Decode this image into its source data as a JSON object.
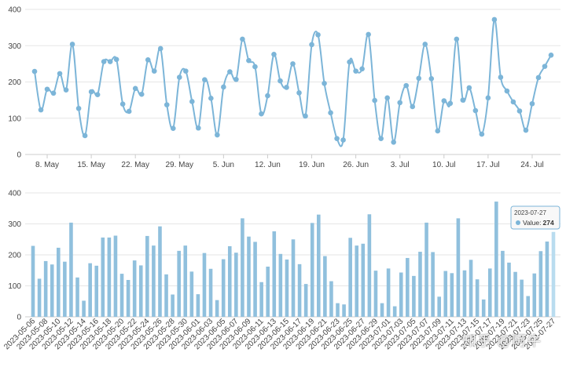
{
  "watermark": "知乎 @阿牛",
  "colors": {
    "line": "#7cb5d8",
    "bar": "#90c0dd",
    "highlight": "#b9dcef",
    "grid": "#e6e6e6"
  },
  "tooltip": {
    "date": "2023-07-27",
    "label": "Value:",
    "value": "274"
  },
  "chart_data": [
    {
      "type": "line",
      "ylim": [
        0,
        400
      ],
      "yticks": [
        0,
        100,
        200,
        300,
        400
      ],
      "grid": true,
      "xtick_labels": [
        "8. May",
        "15. May",
        "22. May",
        "29. May",
        "5. Jun",
        "12. Jun",
        "19. Jun",
        "26. Jun",
        "3. Jul",
        "10. Jul",
        "17. Jul",
        "24. Jul"
      ],
      "series": [
        {
          "x": [
            "2023-05-06",
            "2023-05-07",
            "2023-05-08",
            "2023-05-09",
            "2023-05-10",
            "2023-05-11",
            "2023-05-12",
            "2023-05-13",
            "2023-05-14",
            "2023-05-15",
            "2023-05-16",
            "2023-05-17",
            "2023-05-18",
            "2023-05-19",
            "2023-05-20",
            "2023-05-21",
            "2023-05-22",
            "2023-05-23",
            "2023-05-24",
            "2023-05-25",
            "2023-05-26",
            "2023-05-27",
            "2023-05-28",
            "2023-05-29",
            "2023-05-30",
            "2023-05-31",
            "2023-06-01",
            "2023-06-02",
            "2023-06-03",
            "2023-06-04",
            "2023-06-05",
            "2023-06-06",
            "2023-06-07",
            "2023-06-08",
            "2023-06-09",
            "2023-06-10",
            "2023-06-11",
            "2023-06-12",
            "2023-06-13",
            "2023-06-14",
            "2023-06-15",
            "2023-06-16",
            "2023-06-17",
            "2023-06-18",
            "2023-06-19",
            "2023-06-20",
            "2023-06-21",
            "2023-06-22",
            "2023-06-23",
            "2023-06-24",
            "2023-06-25",
            "2023-06-26",
            "2023-06-27",
            "2023-06-28",
            "2023-06-29",
            "2023-06-30",
            "2023-07-01",
            "2023-07-02",
            "2023-07-03",
            "2023-07-04",
            "2023-07-05",
            "2023-07-06",
            "2023-07-07",
            "2023-07-08",
            "2023-07-09",
            "2023-07-10",
            "2023-07-11",
            "2023-07-12",
            "2023-07-13",
            "2023-07-14",
            "2023-07-15",
            "2023-07-16",
            "2023-07-17",
            "2023-07-18",
            "2023-07-19",
            "2023-07-20",
            "2023-07-21",
            "2023-07-22",
            "2023-07-23",
            "2023-07-24",
            "2023-07-25",
            "2023-07-26",
            "2023-07-27"
          ],
          "values": [
            229,
            123,
            180,
            169,
            223,
            178,
            304,
            127,
            52,
            173,
            165,
            256,
            256,
            262,
            139,
            119,
            182,
            166,
            261,
            230,
            292,
            137,
            72,
            213,
            230,
            146,
            73,
            206,
            155,
            54,
            186,
            228,
            207,
            318,
            259,
            242,
            112,
            162,
            276,
            203,
            185,
            250,
            170,
            106,
            303,
            330,
            196,
            115,
            44,
            40,
            255,
            230,
            236,
            331,
            149,
            44,
            156,
            34,
            143,
            190,
            132,
            210,
            304,
            209,
            65,
            148,
            141,
            318,
            150,
            184,
            121,
            56,
            156,
            372,
            213,
            175,
            145,
            120,
            67,
            140,
            212,
            243,
            274
          ]
        }
      ]
    },
    {
      "type": "bar",
      "ylim": [
        0,
        400
      ],
      "yticks": [
        0,
        100,
        200,
        300,
        400
      ],
      "grid": true,
      "xtick_labels": [
        "2023-05-06",
        "2023-05-08",
        "2023-05-10",
        "2023-05-12",
        "2023-05-14",
        "2023-05-16",
        "2023-05-18",
        "2023-05-20",
        "2023-05-22",
        "2023-05-24",
        "2023-05-26",
        "2023-05-28",
        "2023-05-30",
        "2023-06-01",
        "2023-06-03",
        "2023-06-05",
        "2023-06-07",
        "2023-06-09",
        "2023-06-11",
        "2023-06-13",
        "2023-06-15",
        "2023-06-17",
        "2023-06-19",
        "2023-06-21",
        "2023-06-23",
        "2023-06-25",
        "2023-06-27",
        "2023-06-29",
        "2023-07-01",
        "2023-07-03",
        "2023-07-05",
        "2023-07-07",
        "2023-07-09",
        "2023-07-11",
        "2023-07-13",
        "2023-07-15",
        "2023-07-17",
        "2023-07-19",
        "2023-07-21",
        "2023-07-23",
        "2023-07-25",
        "2023-07-27"
      ],
      "series": [
        {
          "x": [
            "2023-05-06",
            "2023-05-07",
            "2023-05-08",
            "2023-05-09",
            "2023-05-10",
            "2023-05-11",
            "2023-05-12",
            "2023-05-13",
            "2023-05-14",
            "2023-05-15",
            "2023-05-16",
            "2023-05-17",
            "2023-05-18",
            "2023-05-19",
            "2023-05-20",
            "2023-05-21",
            "2023-05-22",
            "2023-05-23",
            "2023-05-24",
            "2023-05-25",
            "2023-05-26",
            "2023-05-27",
            "2023-05-28",
            "2023-05-29",
            "2023-05-30",
            "2023-05-31",
            "2023-06-01",
            "2023-06-02",
            "2023-06-03",
            "2023-06-04",
            "2023-06-05",
            "2023-06-06",
            "2023-06-07",
            "2023-06-08",
            "2023-06-09",
            "2023-06-10",
            "2023-06-11",
            "2023-06-12",
            "2023-06-13",
            "2023-06-14",
            "2023-06-15",
            "2023-06-16",
            "2023-06-17",
            "2023-06-18",
            "2023-06-19",
            "2023-06-20",
            "2023-06-21",
            "2023-06-22",
            "2023-06-23",
            "2023-06-24",
            "2023-06-25",
            "2023-06-26",
            "2023-06-27",
            "2023-06-28",
            "2023-06-29",
            "2023-06-30",
            "2023-07-01",
            "2023-07-02",
            "2023-07-03",
            "2023-07-04",
            "2023-07-05",
            "2023-07-06",
            "2023-07-07",
            "2023-07-08",
            "2023-07-09",
            "2023-07-10",
            "2023-07-11",
            "2023-07-12",
            "2023-07-13",
            "2023-07-14",
            "2023-07-15",
            "2023-07-16",
            "2023-07-17",
            "2023-07-18",
            "2023-07-19",
            "2023-07-20",
            "2023-07-21",
            "2023-07-22",
            "2023-07-23",
            "2023-07-24",
            "2023-07-25",
            "2023-07-26",
            "2023-07-27"
          ],
          "values": [
            229,
            123,
            180,
            169,
            223,
            178,
            304,
            127,
            52,
            173,
            165,
            256,
            256,
            262,
            139,
            119,
            182,
            166,
            261,
            230,
            292,
            137,
            72,
            213,
            230,
            146,
            73,
            206,
            155,
            54,
            186,
            228,
            207,
            318,
            259,
            242,
            112,
            162,
            276,
            203,
            185,
            250,
            170,
            106,
            303,
            330,
            196,
            115,
            44,
            40,
            255,
            230,
            236,
            331,
            149,
            44,
            156,
            34,
            143,
            190,
            132,
            210,
            304,
            209,
            65,
            148,
            141,
            318,
            150,
            184,
            121,
            56,
            156,
            372,
            213,
            175,
            145,
            120,
            67,
            140,
            212,
            243,
            274
          ]
        }
      ]
    }
  ]
}
